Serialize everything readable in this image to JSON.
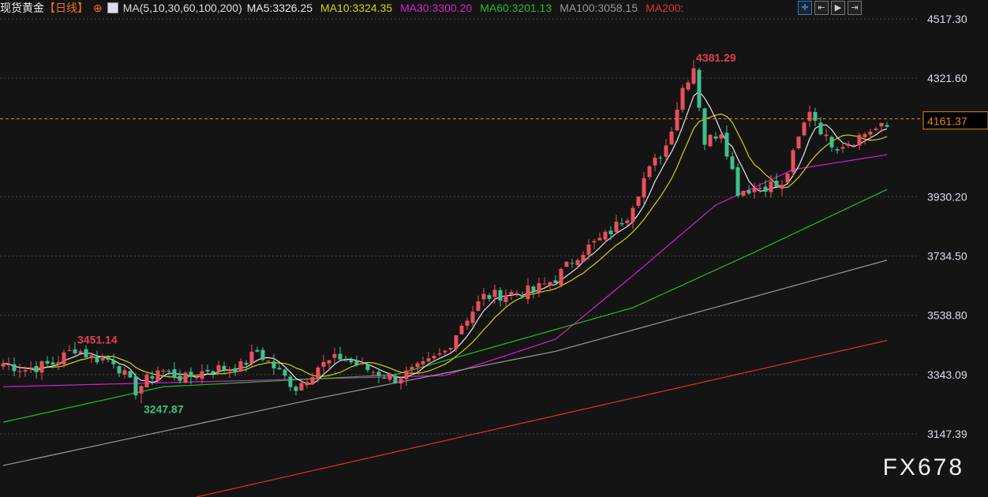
{
  "header": {
    "title": "现货黄金",
    "period": "【日线】",
    "indicator": "MA(5,10,30,60,100,200)",
    "ma_values": [
      {
        "label": "MA5:3326.25",
        "color": "#e6e6e6"
      },
      {
        "label": "MA10:3324.35",
        "color": "#d4d400"
      },
      {
        "label": "MA30:3300.20",
        "color": "#d020d0"
      },
      {
        "label": "MA60:3201.13",
        "color": "#20c020"
      },
      {
        "label": "MA100:3058.15",
        "color": "#999999"
      },
      {
        "label": "MA200:",
        "color": "#e03030"
      }
    ]
  },
  "toolbar": [
    {
      "icon": "crosshair-icon",
      "glyph": "✚"
    },
    {
      "icon": "first-bar-icon",
      "glyph": "⇤"
    },
    {
      "icon": "play-icon",
      "glyph": "▶"
    },
    {
      "icon": "exit-icon",
      "glyph": "⇥"
    }
  ],
  "watermark": "FX678",
  "chart_data": {
    "type": "candlestick",
    "ylim": [
      3147.39,
      4517.3
    ],
    "y_ticks": [
      "4517.30",
      "4321.60",
      "3930.20",
      "3734.50",
      "3538.80",
      "3343.09",
      "3147.39"
    ],
    "current_price": "4161.37",
    "annotations": [
      {
        "text": "3451.14",
        "index": 13,
        "value": 3451.14,
        "color": "#e04050"
      },
      {
        "text": "3247.87",
        "index": 25,
        "value": 3247.87,
        "color": "#40c080"
      },
      {
        "text": "4381.29",
        "index": 125,
        "value": 4381.29,
        "color": "#e04050"
      }
    ],
    "close_keyframes": [
      [
        0,
        3380
      ],
      [
        4,
        3360
      ],
      [
        9,
        3380
      ],
      [
        13,
        3430
      ],
      [
        16,
        3400
      ],
      [
        20,
        3390
      ],
      [
        24,
        3290
      ],
      [
        28,
        3360
      ],
      [
        33,
        3330
      ],
      [
        37,
        3360
      ],
      [
        43,
        3370
      ],
      [
        46,
        3420
      ],
      [
        50,
        3350
      ],
      [
        53,
        3300
      ],
      [
        57,
        3370
      ],
      [
        61,
        3400
      ],
      [
        66,
        3360
      ],
      [
        71,
        3330
      ],
      [
        76,
        3370
      ],
      [
        80,
        3420
      ],
      [
        83,
        3510
      ],
      [
        87,
        3600
      ],
      [
        91,
        3610
      ],
      [
        96,
        3620
      ],
      [
        100,
        3660
      ],
      [
        104,
        3740
      ],
      [
        109,
        3800
      ],
      [
        113,
        3870
      ],
      [
        116,
        3990
      ],
      [
        120,
        4100
      ],
      [
        123,
        4290
      ],
      [
        125,
        4360
      ],
      [
        127,
        4110
      ],
      [
        130,
        4150
      ],
      [
        133,
        3950
      ],
      [
        136,
        3960
      ],
      [
        139,
        3970
      ],
      [
        141,
        3960
      ],
      [
        144,
        4120
      ],
      [
        146,
        4220
      ],
      [
        149,
        4120
      ],
      [
        151,
        4100
      ],
      [
        154,
        4120
      ],
      [
        157,
        4150
      ],
      [
        160,
        4161
      ]
    ],
    "series": [
      {
        "name": "MA30",
        "color": "#d020d0",
        "keyframes": [
          [
            0,
            3303
          ],
          [
            80,
            3340
          ],
          [
            100,
            3460
          ],
          [
            114,
            3670
          ],
          [
            129,
            3903
          ],
          [
            143,
            4020
          ],
          [
            161,
            4072
          ]
        ]
      },
      {
        "name": "MA60",
        "color": "#20c020",
        "keyframes": [
          [
            0,
            3186
          ],
          [
            29,
            3303
          ],
          [
            71,
            3343
          ],
          [
            114,
            3564
          ],
          [
            136,
            3747
          ],
          [
            161,
            3963
          ]
        ]
      },
      {
        "name": "MA100",
        "color": "#999999",
        "keyframes": [
          [
            0,
            3043
          ],
          [
            57,
            3265
          ],
          [
            100,
            3420
          ],
          [
            161,
            3726
          ]
        ]
      },
      {
        "name": "MA200",
        "color": "#e03030",
        "keyframes": [
          [
            35,
            2939
          ],
          [
            161,
            3460
          ]
        ]
      }
    ],
    "colors": {
      "up": "#e8505b",
      "down": "#3fbf8f",
      "ma5": "#e6e6e6",
      "ma10": "#d4d400",
      "grid": "#444444",
      "price_line": "#e08a20"
    }
  }
}
